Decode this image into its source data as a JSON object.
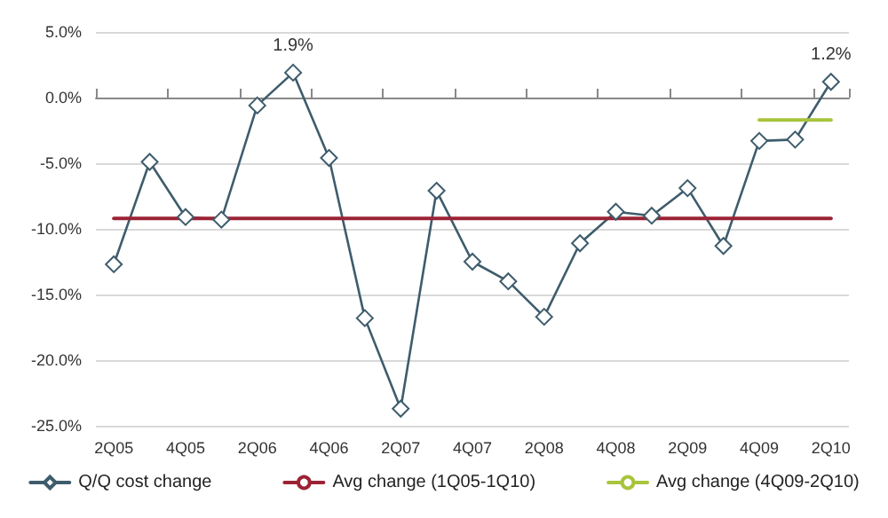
{
  "chart_data": {
    "type": "line",
    "categories": [
      "2Q05",
      null,
      "4Q05",
      null,
      "2Q06",
      null,
      "4Q06",
      null,
      "2Q07",
      null,
      "4Q07",
      null,
      "2Q08",
      null,
      "4Q08",
      null,
      "2Q09",
      null,
      "4Q09",
      null,
      "2Q10"
    ],
    "series": [
      {
        "name": "Q/Q cost change",
        "color": "#3e5c6c",
        "marker": "diamond",
        "values": [
          -12.7,
          -4.9,
          -9.1,
          -9.3,
          -0.6,
          1.9,
          -4.6,
          -16.8,
          -23.7,
          -7.1,
          -12.5,
          -14.0,
          -16.7,
          -11.1,
          -8.7,
          -9.0,
          -6.9,
          -11.3,
          -3.3,
          -3.2,
          1.2
        ],
        "value_labels": [
          null,
          null,
          null,
          null,
          null,
          "1.9%",
          null,
          null,
          null,
          null,
          null,
          null,
          null,
          null,
          null,
          null,
          null,
          null,
          null,
          null,
          "1.2%"
        ]
      },
      {
        "name": "Avg change (1Q05-1Q10)",
        "color": "#9b2335",
        "marker": "none",
        "values": [
          -9.2,
          -9.2,
          -9.2,
          -9.2,
          -9.2,
          -9.2,
          -9.2,
          -9.2,
          -9.2,
          -9.2,
          -9.2,
          -9.2,
          -9.2,
          -9.2,
          -9.2,
          -9.2,
          -9.2,
          -9.2,
          -9.2,
          -9.2,
          -9.2
        ]
      },
      {
        "name": "Avg change (4Q09-2Q10)",
        "color": "#a8c43c",
        "marker": "none",
        "values": [
          null,
          null,
          null,
          null,
          null,
          null,
          null,
          null,
          null,
          null,
          null,
          null,
          null,
          null,
          null,
          null,
          null,
          null,
          -1.7,
          -1.7,
          -1.7
        ]
      }
    ],
    "ylim": [
      -25,
      5
    ],
    "yticks": [
      {
        "value": -25,
        "label": "-25.0%"
      },
      {
        "value": -20,
        "label": "-20.0%"
      },
      {
        "value": -15,
        "label": "-15.0%"
      },
      {
        "value": -10,
        "label": "-10.0%"
      },
      {
        "value": -5,
        "label": "-5.0%"
      },
      {
        "value": 0,
        "label": "0.0%"
      },
      {
        "value": 5,
        "label": "5.0%"
      }
    ],
    "grid": "y",
    "legend": "bottom",
    "line_style": "solid"
  }
}
